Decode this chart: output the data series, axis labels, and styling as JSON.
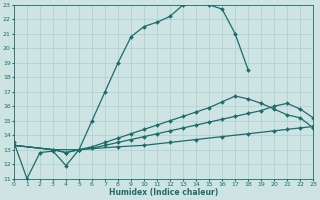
{
  "xlabel": "Humidex (Indice chaleur)",
  "xlim": [
    0,
    23
  ],
  "ylim": [
    11,
    23
  ],
  "yticks": [
    11,
    12,
    13,
    14,
    15,
    16,
    17,
    18,
    19,
    20,
    21,
    22,
    23
  ],
  "xticks": [
    0,
    1,
    2,
    3,
    4,
    5,
    6,
    7,
    8,
    9,
    10,
    11,
    12,
    13,
    14,
    15,
    16,
    17,
    18,
    19,
    20,
    21,
    22,
    23
  ],
  "bg_color": "#cde4e3",
  "grid_color": "#aacfcf",
  "line_color": "#1e6b6b",
  "curve1_x": [
    0,
    1,
    2,
    3,
    4,
    5,
    6,
    7,
    8,
    9,
    10,
    11,
    12,
    13,
    14,
    15,
    16,
    17,
    18
  ],
  "curve1_y": [
    13.5,
    11.0,
    12.8,
    12.9,
    11.9,
    13.0,
    15.0,
    17.0,
    19.0,
    20.8,
    21.5,
    21.8,
    22.2,
    23.0,
    23.1,
    23.0,
    22.7,
    21.0,
    18.5
  ],
  "curve2_x": [
    0,
    3,
    4,
    5,
    6,
    7,
    8,
    9,
    10,
    11,
    12,
    13,
    14,
    15,
    16,
    17,
    18,
    19,
    20,
    21,
    22,
    23
  ],
  "curve2_y": [
    13.3,
    13.0,
    12.8,
    13.0,
    13.2,
    13.5,
    13.8,
    14.1,
    14.4,
    14.7,
    15.0,
    15.3,
    15.6,
    15.9,
    16.3,
    16.7,
    16.5,
    16.2,
    15.8,
    15.4,
    15.2,
    14.5
  ],
  "curve3_x": [
    0,
    3,
    4,
    5,
    6,
    7,
    8,
    9,
    10,
    11,
    12,
    13,
    14,
    15,
    16,
    17,
    18,
    19,
    20,
    21,
    22,
    23
  ],
  "curve3_y": [
    13.3,
    13.0,
    12.8,
    13.0,
    13.1,
    13.3,
    13.5,
    13.7,
    13.9,
    14.1,
    14.3,
    14.5,
    14.7,
    14.9,
    15.1,
    15.3,
    15.5,
    15.7,
    16.0,
    16.2,
    15.8,
    15.2
  ],
  "curve4_x": [
    0,
    3,
    5,
    8,
    10,
    12,
    14,
    16,
    18,
    20,
    21,
    22,
    23
  ],
  "curve4_y": [
    13.3,
    13.0,
    13.0,
    13.2,
    13.3,
    13.5,
    13.7,
    13.9,
    14.1,
    14.3,
    14.4,
    14.5,
    14.6
  ]
}
